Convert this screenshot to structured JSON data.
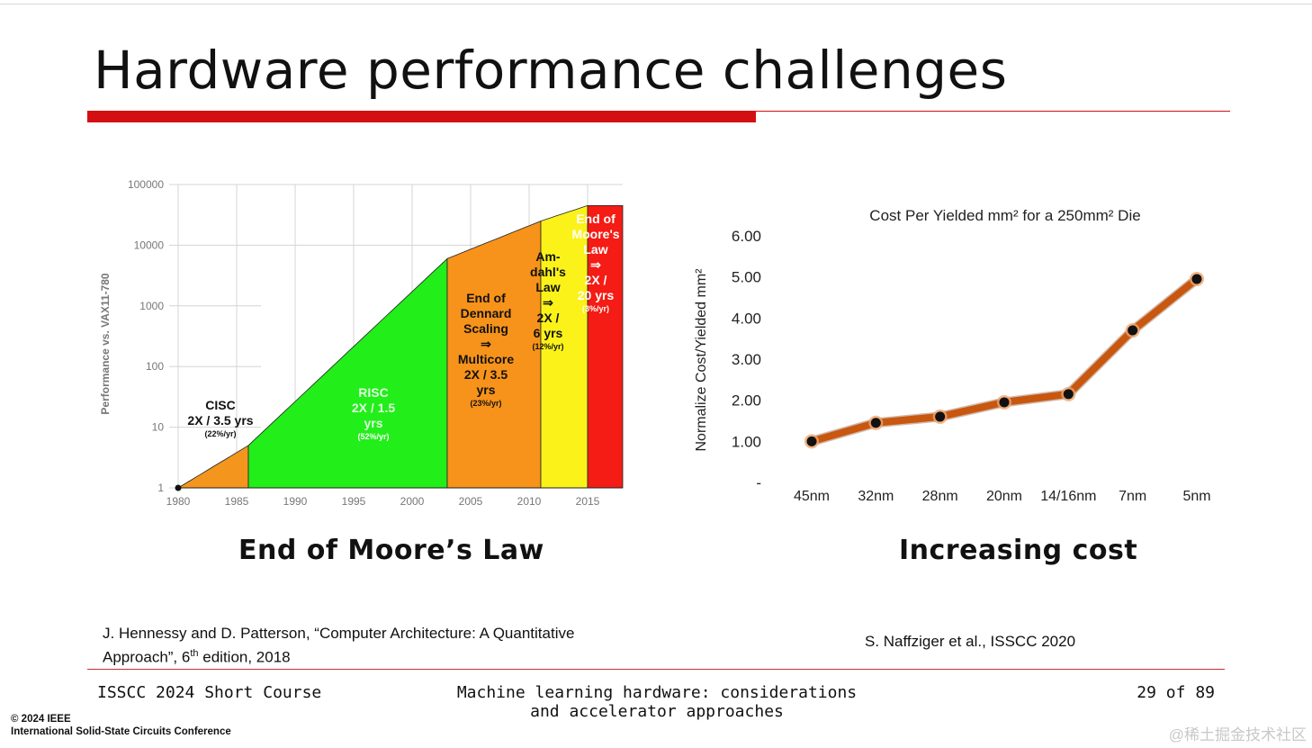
{
  "slide": {
    "title": "Hardware performance challenges",
    "left_caption": "End of Moore’s Law",
    "right_caption": "Increasing cost",
    "ref_left": {
      "authors": "J. Hennessy and D. Patterson",
      "work_line1": ", “Computer Architecture: A Quantitative",
      "work_line2_a": "Approach”, 6",
      "sup": "th",
      "work_line2_b": " edition, 2018"
    },
    "ref_right": "S. Naffziger et al., ISSCC 2020",
    "footer": {
      "left": "ISSCC 2024 Short Course",
      "center_line1": "Machine learning hardware:  considerations",
      "center_line2": "and accelerator approaches",
      "page": "29 of 89"
    },
    "copyright_line1": "© 2024 IEEE",
    "copyright_line2": "International Solid-State Circuits Conference",
    "watermark": "@稀土掘金技术社区"
  },
  "chart_data": [
    {
      "type": "area",
      "title": "",
      "ylabel": "Performance vs. VAX11-780",
      "y_scale": "log",
      "y_ticks": [
        "100000",
        "10000",
        "1000",
        "100",
        "10",
        "1"
      ],
      "x_ticks": [
        "1980",
        "1985",
        "1990",
        "1995",
        "2000",
        "2005",
        "2010",
        "2015"
      ],
      "x_range": [
        1980,
        2018
      ],
      "y_range": [
        1,
        100000
      ],
      "curve": [
        [
          1980,
          1
        ],
        [
          1986,
          5
        ],
        [
          2003,
          6000
        ],
        [
          2011,
          25000
        ],
        [
          2015,
          45000
        ],
        [
          2018,
          45000
        ]
      ],
      "regions": [
        {
          "name": "CISC",
          "x_start": 1980,
          "x_end": 1986,
          "color": "#f4961e",
          "lines": [
            "CISC",
            "2X / 3.5 yrs"
          ],
          "rate": "(22%/yr)"
        },
        {
          "name": "RISC",
          "x_start": 1986,
          "x_end": 2003,
          "color": "#22ee1a",
          "lines": [
            "RISC",
            "2X / 1.5",
            "yrs"
          ],
          "rate": "(52%/yr)"
        },
        {
          "name": "End of Dennard Scaling",
          "x_start": 2003,
          "x_end": 2011,
          "color": "#f7931a",
          "lines": [
            "End of",
            "Dennard",
            "Scaling",
            "⇒",
            "Multicore",
            "2X / 3.5",
            "yrs"
          ],
          "rate": "(23%/yr)"
        },
        {
          "name": "Amdahl's Law",
          "x_start": 2011,
          "x_end": 2015,
          "color": "#fbf21a",
          "lines": [
            "Am-",
            "dahl's",
            "Law",
            "⇒",
            "2X /",
            "6 yrs"
          ],
          "rate": "(12%/yr)"
        },
        {
          "name": "End of Moore's Law",
          "x_start": 2015,
          "x_end": 2018,
          "color": "#f41c14",
          "lines": [
            "End of",
            "Moore's",
            "Law",
            "⇒",
            "2X /",
            "20 yrs"
          ],
          "rate": "(3%/yr)"
        }
      ]
    },
    {
      "type": "line",
      "title": "Cost Per Yielded mm² for a 250mm² Die",
      "ylabel": "Normalize Cost/Yielded mm²",
      "xlabel": "",
      "categories": [
        "45nm",
        "32nm",
        "28nm",
        "20nm",
        "14/16nm",
        "7nm",
        "5nm"
      ],
      "values": [
        1.0,
        1.45,
        1.6,
        1.95,
        2.15,
        3.7,
        4.95
      ],
      "y_ticks": [
        "6.00",
        "5.00",
        "4.00",
        "3.00",
        "2.00",
        "1.00",
        "-"
      ],
      "ylim": [
        0,
        6
      ],
      "color": "#c8570f"
    }
  ]
}
